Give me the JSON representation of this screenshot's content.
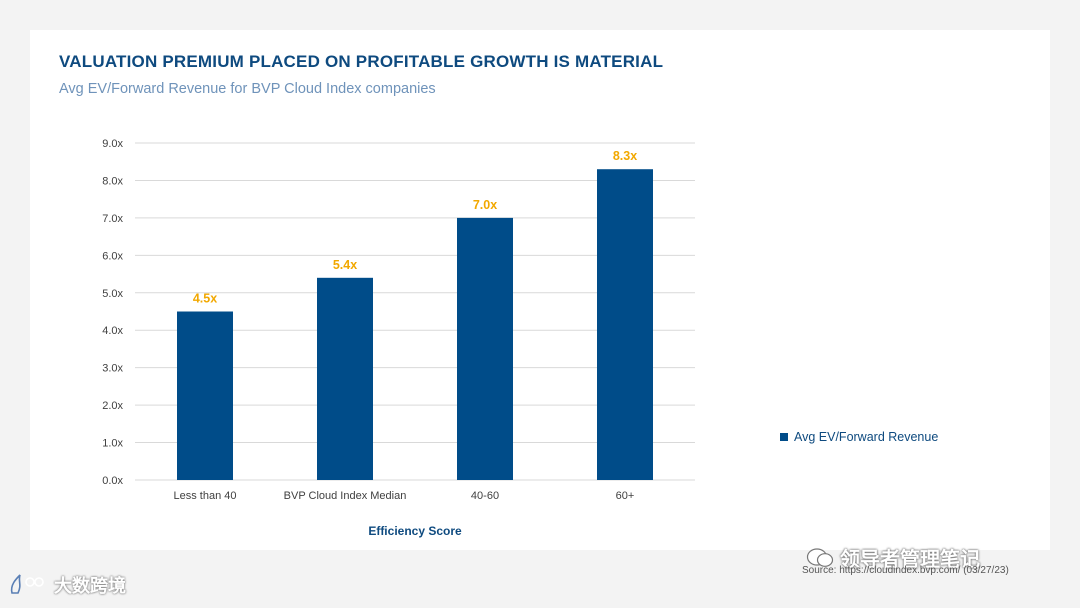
{
  "header": {
    "title": "VALUATION PREMIUM PLACED ON PROFITABLE GROWTH IS MATERIAL",
    "subtitle": "Avg EV/Forward Revenue for BVP Cloud Index companies"
  },
  "chart_data": {
    "type": "bar",
    "title": "VALUATION PREMIUM PLACED ON PROFITABLE GROWTH IS MATERIAL",
    "subtitle": "Avg EV/Forward Revenue for BVP Cloud Index companies",
    "categories": [
      "Less than 40",
      "BVP Cloud Index Median",
      "40-60",
      "60+"
    ],
    "series": [
      {
        "name": "Avg EV/Forward Revenue",
        "values": [
          4.5,
          5.4,
          7.0,
          8.3
        ]
      }
    ],
    "data_labels": [
      "4.5x",
      "5.4x",
      "7.0x",
      "8.3x"
    ],
    "xlabel": "Efficiency Score",
    "ylabel": "",
    "ylim": [
      0,
      9
    ],
    "yticks": [
      "0.0x",
      "1.0x",
      "2.0x",
      "3.0x",
      "4.0x",
      "5.0x",
      "6.0x",
      "7.0x",
      "8.0x",
      "9.0x"
    ],
    "grid": true,
    "legend_position": "right",
    "colors": {
      "bar": "#004c89",
      "label": "#f2a800",
      "grid": "#d9d9d9",
      "axis_text": "#404040",
      "xlabel": "#0e4a7f"
    }
  },
  "legend": {
    "label": "Avg EV/Forward Revenue"
  },
  "footer": {
    "source": "Source: https://cloudindex.bvp.com/ (03/27/23)",
    "watermark_right": "领导者管理笔记",
    "watermark_left": "大数跨境"
  }
}
